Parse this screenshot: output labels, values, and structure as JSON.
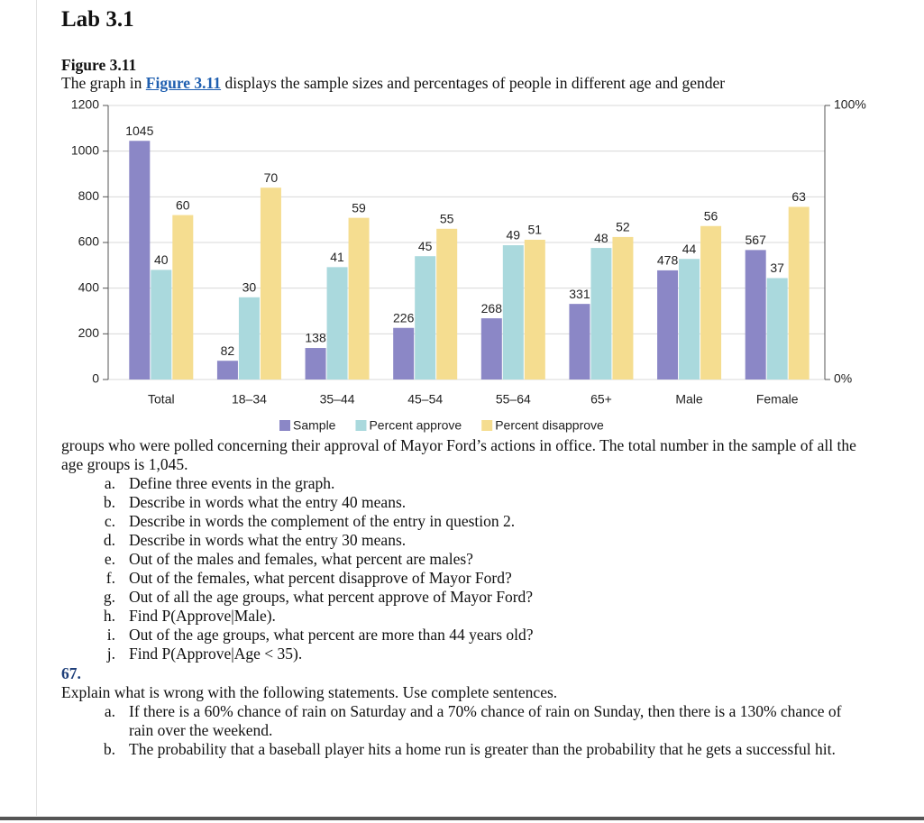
{
  "header": {
    "title": "Lab 3.1"
  },
  "figure": {
    "label": "Figure 3.11",
    "caption_start": "The graph in",
    "link": "Figure 3.11",
    "caption_end": "displays the sample sizes and percentages of people in different age and gender"
  },
  "chart_data": {
    "type": "bar",
    "categories": [
      "Total",
      "18–34",
      "35–44",
      "45–54",
      "55–64",
      "65+",
      "Male",
      "Female"
    ],
    "series": [
      {
        "name": "Sample",
        "color": "#8b87c6",
        "values": [
          1045,
          82,
          138,
          226,
          268,
          331,
          478,
          567
        ]
      },
      {
        "name": "Percent approve",
        "color": "#aad9dd",
        "axis": "y2",
        "values": [
          40,
          30,
          41,
          45,
          49,
          48,
          44,
          37
        ]
      },
      {
        "name": "Percent disapprove",
        "color": "#f5dd90",
        "axis": "y2",
        "values": [
          60,
          70,
          59,
          55,
          51,
          52,
          56,
          63
        ]
      }
    ],
    "ylim": [
      0,
      1200
    ],
    "yticks": [
      0,
      200,
      400,
      600,
      800,
      1000,
      1200
    ],
    "y2lim": [
      0,
      100
    ],
    "y2ticks": [
      {
        "value": 0,
        "label": "0%"
      },
      {
        "value": 100,
        "label": "100%"
      }
    ],
    "grid": true,
    "legend": "bottom"
  },
  "intro": "groups who were polled concerning their approval of Mayor Ford’s actions in office. The total number in the sample of all the age groups is 1,045.",
  "questions": [
    {
      "letter": "a.",
      "text": "Define three events in the graph."
    },
    {
      "letter": "b.",
      "text": "Describe in words what the entry 40 means."
    },
    {
      "letter": "c.",
      "text": "Describe in words the complement of the entry in question 2."
    },
    {
      "letter": "d.",
      "text": "Describe in words what the entry 30 means."
    },
    {
      "letter": "e.",
      "text": "Out of the males and females, what percent are males?"
    },
    {
      "letter": "f.",
      "text": "Out of the females, what percent disapprove of Mayor Ford?"
    },
    {
      "letter": "g.",
      "text": "Out of all the age groups, what percent approve of Mayor Ford?"
    },
    {
      "letter": "h.",
      "text": "Find P(Approve|Male)."
    },
    {
      "letter": "i.",
      "text": "Out of the age groups, what percent are more than 44 years old?"
    },
    {
      "letter": "j.",
      "text": "Find P(Approve|Age < 35)."
    }
  ],
  "problem": {
    "number": "67.",
    "text": "Explain what is wrong with the following statements. Use complete sentences.",
    "items": [
      {
        "letter": "a.",
        "text": "If there is a 60% chance of rain on Saturday and a 70% chance of rain on Sunday, then there is a 130% chance of rain over the weekend."
      },
      {
        "letter": "b.",
        "text": "The probability that a baseball player hits a home run is greater than the probability that he gets a successful hit."
      }
    ]
  }
}
